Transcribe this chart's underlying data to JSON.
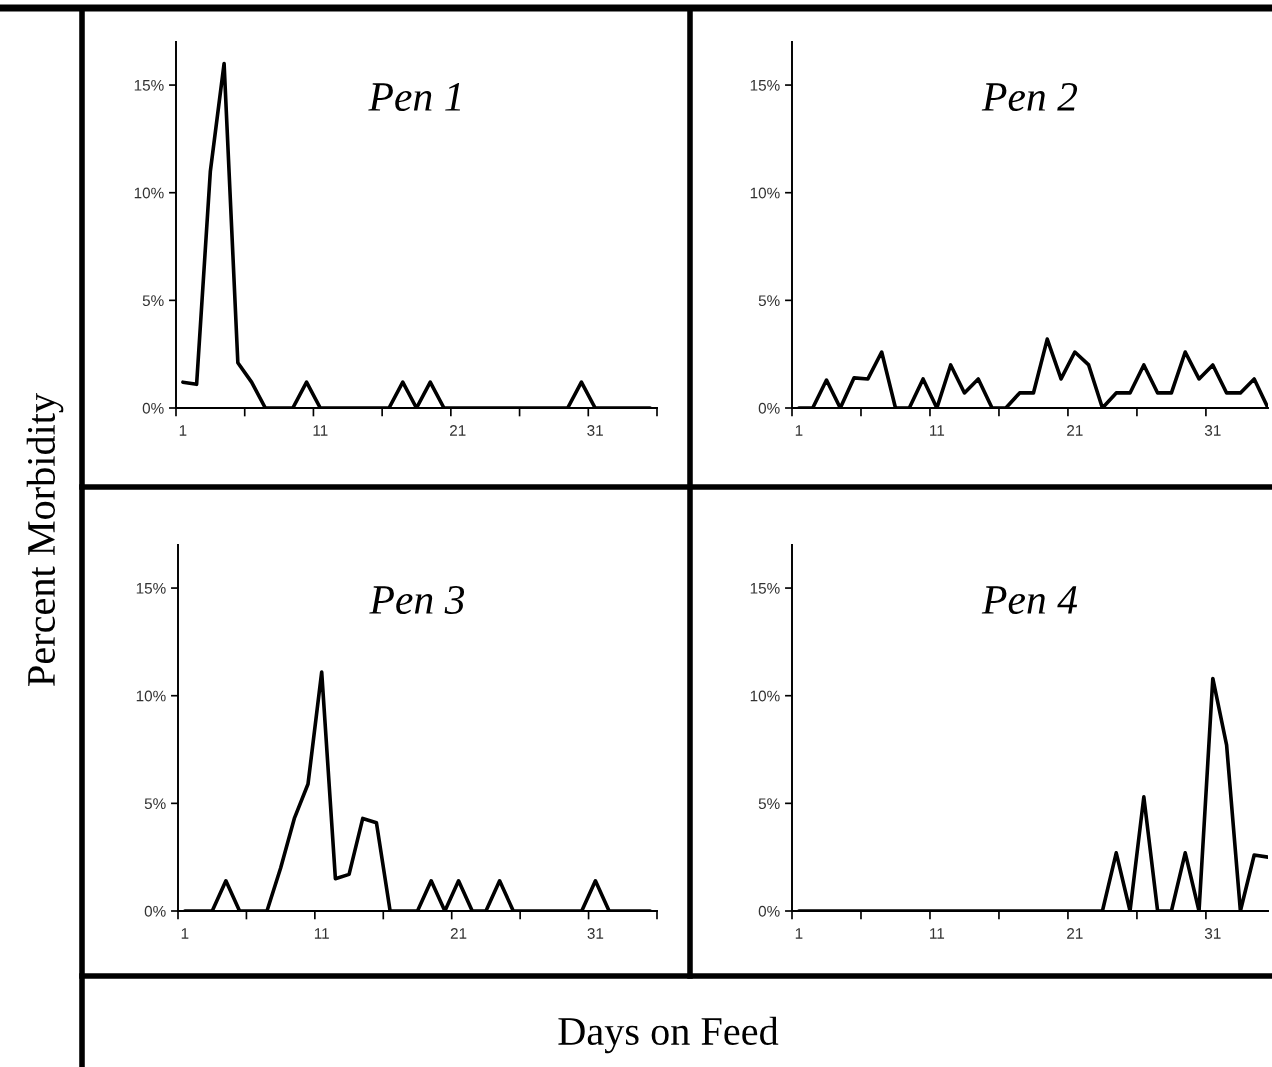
{
  "chart_data": [
    {
      "type": "line",
      "title": "Pen 1",
      "xlabel": "Days on Feed",
      "ylabel": "Percent Morbidity",
      "x": [
        1,
        2,
        3,
        4,
        5,
        6,
        7,
        8,
        9,
        10,
        11,
        12,
        13,
        14,
        15,
        16,
        17,
        18,
        19,
        20,
        21,
        22,
        23,
        24,
        25,
        26,
        27,
        28,
        29,
        30,
        31,
        32,
        33,
        34,
        35
      ],
      "series": [
        {
          "color": "#000000",
          "values": [
            1.2,
            1.1,
            11,
            16,
            2.1,
            1.2,
            0,
            0,
            0,
            1.2,
            0,
            0,
            0,
            0,
            0,
            0,
            1.2,
            0,
            1.2,
            0,
            0,
            0,
            0,
            0,
            0,
            0,
            0,
            0,
            0,
            1.2,
            0,
            0,
            0,
            0,
            0
          ]
        }
      ],
      "xlim": [
        0.5,
        35.5
      ],
      "ylim": [
        0,
        17
      ],
      "xticks": [
        1,
        11,
        21,
        31,
        {
          "value": 0.5,
          "label": null
        },
        {
          "value": 5.5,
          "label": null
        },
        {
          "value": 10.5,
          "label": null
        },
        {
          "value": 15.5,
          "label": null
        },
        {
          "value": 20.5,
          "label": null
        },
        {
          "value": 25.5,
          "label": null
        },
        {
          "value": 30.5,
          "label": null
        },
        {
          "value": 35.5,
          "label": null
        }
      ],
      "yticks": [
        {
          "value": 0,
          "label": "0%"
        },
        {
          "value": 5,
          "label": "5%"
        },
        {
          "value": 10,
          "label": "10%"
        },
        {
          "value": 15,
          "label": "15%"
        }
      ],
      "line_style": "solid"
    },
    {
      "type": "line",
      "title": "Pen 2",
      "x": [
        1,
        2,
        3,
        4,
        5,
        6,
        7,
        8,
        9,
        10,
        11,
        12,
        13,
        14,
        15,
        16,
        17,
        18,
        19,
        20,
        21,
        22,
        23,
        24,
        25,
        26,
        27,
        28,
        29,
        30,
        31,
        32,
        33,
        34,
        35
      ],
      "series": [
        {
          "color": "#000000",
          "values": [
            0,
            0,
            1.3,
            0,
            1.4,
            1.35,
            2.6,
            0,
            0,
            1.35,
            0,
            2.0,
            0.7,
            1.35,
            0,
            0,
            0.7,
            0.7,
            3.2,
            1.35,
            2.6,
            2.0,
            0,
            0.7,
            0.7,
            2.0,
            0.7,
            0.7,
            2.6,
            1.35,
            2.0,
            0.7,
            0.7,
            1.35,
            0
          ]
        }
      ],
      "xlim": [
        0.5,
        35
      ],
      "ylim": [
        0,
        17
      ],
      "xticks": [
        1,
        11,
        21,
        31,
        {
          "value": 0.5,
          "label": null
        },
        {
          "value": 5.5,
          "label": null
        },
        {
          "value": 10.5,
          "label": null
        },
        {
          "value": 15.5,
          "label": null
        },
        {
          "value": 20.5,
          "label": null
        },
        {
          "value": 25.5,
          "label": null
        },
        {
          "value": 30.5,
          "label": null
        }
      ],
      "yticks": [
        {
          "value": 0,
          "label": "0%"
        },
        {
          "value": 5,
          "label": "5%"
        },
        {
          "value": 10,
          "label": "10%"
        },
        {
          "value": 15,
          "label": "15%"
        }
      ],
      "line_style": "solid"
    },
    {
      "type": "line",
      "title": "Pen 3",
      "x": [
        1,
        2,
        3,
        4,
        5,
        6,
        7,
        8,
        9,
        10,
        11,
        12,
        13,
        14,
        15,
        16,
        17,
        18,
        19,
        20,
        21,
        22,
        23,
        24,
        25,
        26,
        27,
        28,
        29,
        30,
        31,
        32,
        33,
        34,
        35
      ],
      "series": [
        {
          "color": "#000000",
          "values": [
            0,
            0,
            0,
            1.4,
            0,
            0,
            0,
            2.0,
            4.3,
            5.9,
            11.1,
            1.5,
            1.7,
            4.3,
            4.1,
            0,
            0,
            0,
            1.4,
            0,
            1.4,
            0,
            0,
            1.4,
            0,
            0,
            0,
            0,
            0,
            0,
            1.4,
            0,
            0,
            0,
            0
          ]
        }
      ],
      "xlim": [
        0.5,
        35.5
      ],
      "ylim": [
        0,
        17
      ],
      "xticks": [
        1,
        11,
        21,
        31,
        {
          "value": 0.5,
          "label": null
        },
        {
          "value": 5.5,
          "label": null
        },
        {
          "value": 10.5,
          "label": null
        },
        {
          "value": 15.5,
          "label": null
        },
        {
          "value": 20.5,
          "label": null
        },
        {
          "value": 25.5,
          "label": null
        },
        {
          "value": 30.5,
          "label": null
        },
        {
          "value": 35.5,
          "label": null
        }
      ],
      "yticks": [
        {
          "value": 0,
          "label": "0%"
        },
        {
          "value": 5,
          "label": "5%"
        },
        {
          "value": 10,
          "label": "10%"
        },
        {
          "value": 15,
          "label": "15%"
        }
      ],
      "line_style": "solid"
    },
    {
      "type": "line",
      "title": "Pen 4",
      "x": [
        1,
        2,
        3,
        4,
        5,
        6,
        7,
        8,
        9,
        10,
        11,
        12,
        13,
        14,
        15,
        16,
        17,
        18,
        19,
        20,
        21,
        22,
        23,
        24,
        25,
        26,
        27,
        28,
        29,
        30,
        31,
        32,
        33,
        34,
        35
      ],
      "series": [
        {
          "color": "#000000",
          "values": [
            0,
            0,
            0,
            0,
            0,
            0,
            0,
            0,
            0,
            0,
            0,
            0,
            0,
            0,
            0,
            0,
            0,
            0,
            0,
            0,
            0,
            0,
            0,
            2.7,
            0,
            5.3,
            0,
            0,
            2.7,
            0,
            10.8,
            7.7,
            0,
            2.6,
            2.5
          ]
        }
      ],
      "xlim": [
        0.5,
        35
      ],
      "ylim": [
        0,
        17
      ],
      "xticks": [
        1,
        11,
        21,
        31,
        {
          "value": 0.5,
          "label": null
        },
        {
          "value": 5.5,
          "label": null
        },
        {
          "value": 10.5,
          "label": null
        },
        {
          "value": 15.5,
          "label": null
        },
        {
          "value": 20.5,
          "label": null
        },
        {
          "value": 25.5,
          "label": null
        },
        {
          "value": 30.5,
          "label": null
        }
      ],
      "yticks": [
        {
          "value": 0,
          "label": "0%"
        },
        {
          "value": 5,
          "label": "5%"
        },
        {
          "value": 10,
          "label": "10%"
        },
        {
          "value": 15,
          "label": "15%"
        }
      ],
      "line_style": "solid"
    }
  ]
}
